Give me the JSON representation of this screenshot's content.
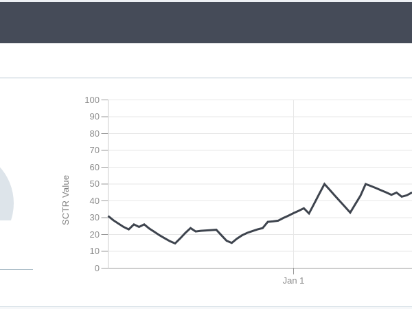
{
  "page": {
    "header_bg": "#454b58",
    "top_strip_color": "#edf0f4",
    "divider_color": "#b9c8d3",
    "bottom_border_color": "#d9e2e8"
  },
  "gauge": {
    "arc_color": "#dde4ea",
    "baseline_color": "#aebfca"
  },
  "chart_data": {
    "type": "line",
    "title": "",
    "xlabel": "",
    "ylabel": "SCTR Value",
    "ylim": [
      0,
      100
    ],
    "yticks": [
      0,
      10,
      20,
      30,
      40,
      50,
      60,
      70,
      80,
      90,
      100
    ],
    "xticks": [
      {
        "label": "Jan 1",
        "index": 36
      }
    ],
    "grid": true,
    "axis_color": "#999999",
    "grid_color": "#e7e7e7",
    "tick_label_color": "#8c8c8c",
    "series": [
      {
        "name": "SCTR",
        "color": "#3e444e",
        "values": [
          31,
          28.5,
          26.5,
          24.5,
          23,
          26,
          24.5,
          26,
          23.5,
          21.5,
          19.5,
          17.7,
          16,
          14.7,
          17.7,
          21,
          23.8,
          21.8,
          22.2,
          22.4,
          22.6,
          22.8,
          19.5,
          16.3,
          15,
          17.5,
          19.5,
          21,
          22,
          23,
          23.8,
          27.5,
          27.8,
          28.2,
          29.8,
          31.2,
          32.7,
          34.1,
          35.6,
          32.5,
          38.3,
          44.2,
          50,
          46.6,
          43.2,
          39.8,
          36.4,
          33,
          38.1,
          43.1,
          50,
          48.8,
          47.6,
          46.3,
          45,
          43.6,
          44.9,
          42.5,
          43.3,
          45
        ]
      }
    ]
  }
}
